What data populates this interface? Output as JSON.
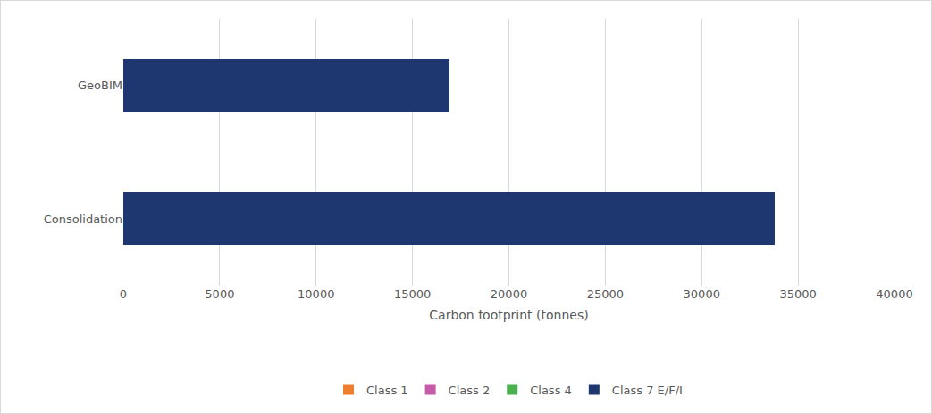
{
  "chart_data": {
    "type": "bar",
    "orientation": "horizontal",
    "stacked": true,
    "x_label": "Carbon footprint (tonnes)",
    "categories": [
      "GeoBIM",
      "Consolidation"
    ],
    "series": [
      {
        "name": "Class 1",
        "color": "#ED7D31",
        "values": [
          0,
          0
        ]
      },
      {
        "name": "Class 2",
        "color": "#C55AA8",
        "values": [
          0,
          0
        ]
      },
      {
        "name": "Class 4",
        "color": "#4CAF50",
        "values": [
          0,
          0
        ]
      },
      {
        "name": "Class 7 E/F/I",
        "color": "#1F3770",
        "values": [
          16900,
          33800
        ]
      }
    ],
    "xlim": [
      0,
      40000
    ],
    "xticks": [
      0,
      5000,
      10000,
      15000,
      20000,
      25000,
      30000,
      35000,
      40000
    ],
    "grid": true,
    "legend": "bottom"
  }
}
